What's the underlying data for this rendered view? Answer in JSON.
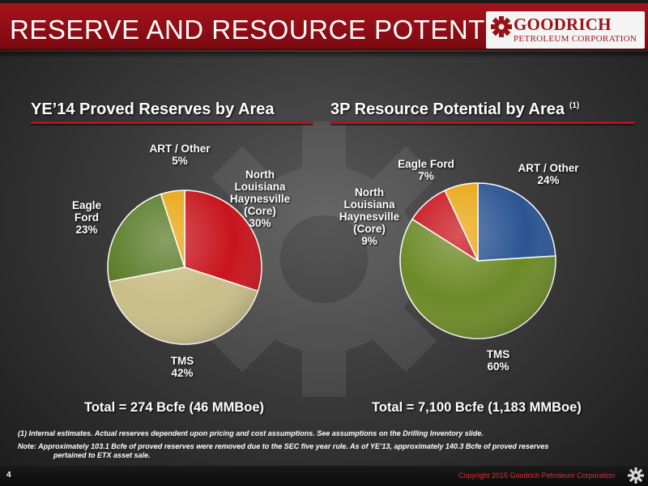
{
  "header": {
    "title": "RESERVE AND RESOURCE POTENTIAL",
    "logo_name": "GOODRICH",
    "logo_sub": "PETROLEUM CORPORATION"
  },
  "chart_data": [
    {
      "type": "pie",
      "title": "YE’14 Proved Reserves by Area",
      "total": "Total = 274 Bcfe (46 MMBoe)",
      "slices": [
        {
          "label": "North Louisiana Haynesville (Core)",
          "display": "North\nLouisiana\nHaynesville\n(Core)\n30%",
          "value": 30,
          "color": "#c8141c"
        },
        {
          "label": "TMS",
          "display": "TMS\n42%",
          "value": 42,
          "color": "#c9be87"
        },
        {
          "label": "Eagle Ford",
          "display": "Eagle\nFord\n23%",
          "value": 23,
          "color": "#5a7c28"
        },
        {
          "label": "ART / Other",
          "display": "ART / Other\n5%",
          "value": 5,
          "color": "#e8a611"
        }
      ]
    },
    {
      "type": "pie",
      "title": "3P Resource Potential by Area",
      "title_note": "(1)",
      "total": "Total = 7,100 Bcfe (1,183 MMBoe)",
      "slices": [
        {
          "label": "ART / Other",
          "display": "ART / Other\n24%",
          "value": 24,
          "color": "#2a5592"
        },
        {
          "label": "TMS",
          "display": "TMS\n60%",
          "value": 60,
          "color": "#6c8a26"
        },
        {
          "label": "North Louisiana Haynesville (Core)",
          "display": "North\nLouisiana\nHaynesville\n(Core)\n9%",
          "value": 9,
          "color": "#c8141c"
        },
        {
          "label": "Eagle Ford",
          "display": "Eagle Ford\n7%",
          "value": 7,
          "color": "#e8a611"
        }
      ]
    }
  ],
  "footnotes": {
    "note1": "(1) Internal estimates.  Actual reserves dependent upon pricing and cost assumptions. See assumptions on the Drilling Inventory slide.",
    "note2": "Note: Approximately 103.1 Bcfe of proved reserves were removed due to the SEC five year rule.  As of YE’13, approximately 140.3 Bcfe of proved reserves",
    "note2_cont": "pertained to ETX asset sale."
  },
  "footer": {
    "page_number": "4",
    "copyright": "Copyright 2015 Goodrich Petroleum Corporation"
  }
}
